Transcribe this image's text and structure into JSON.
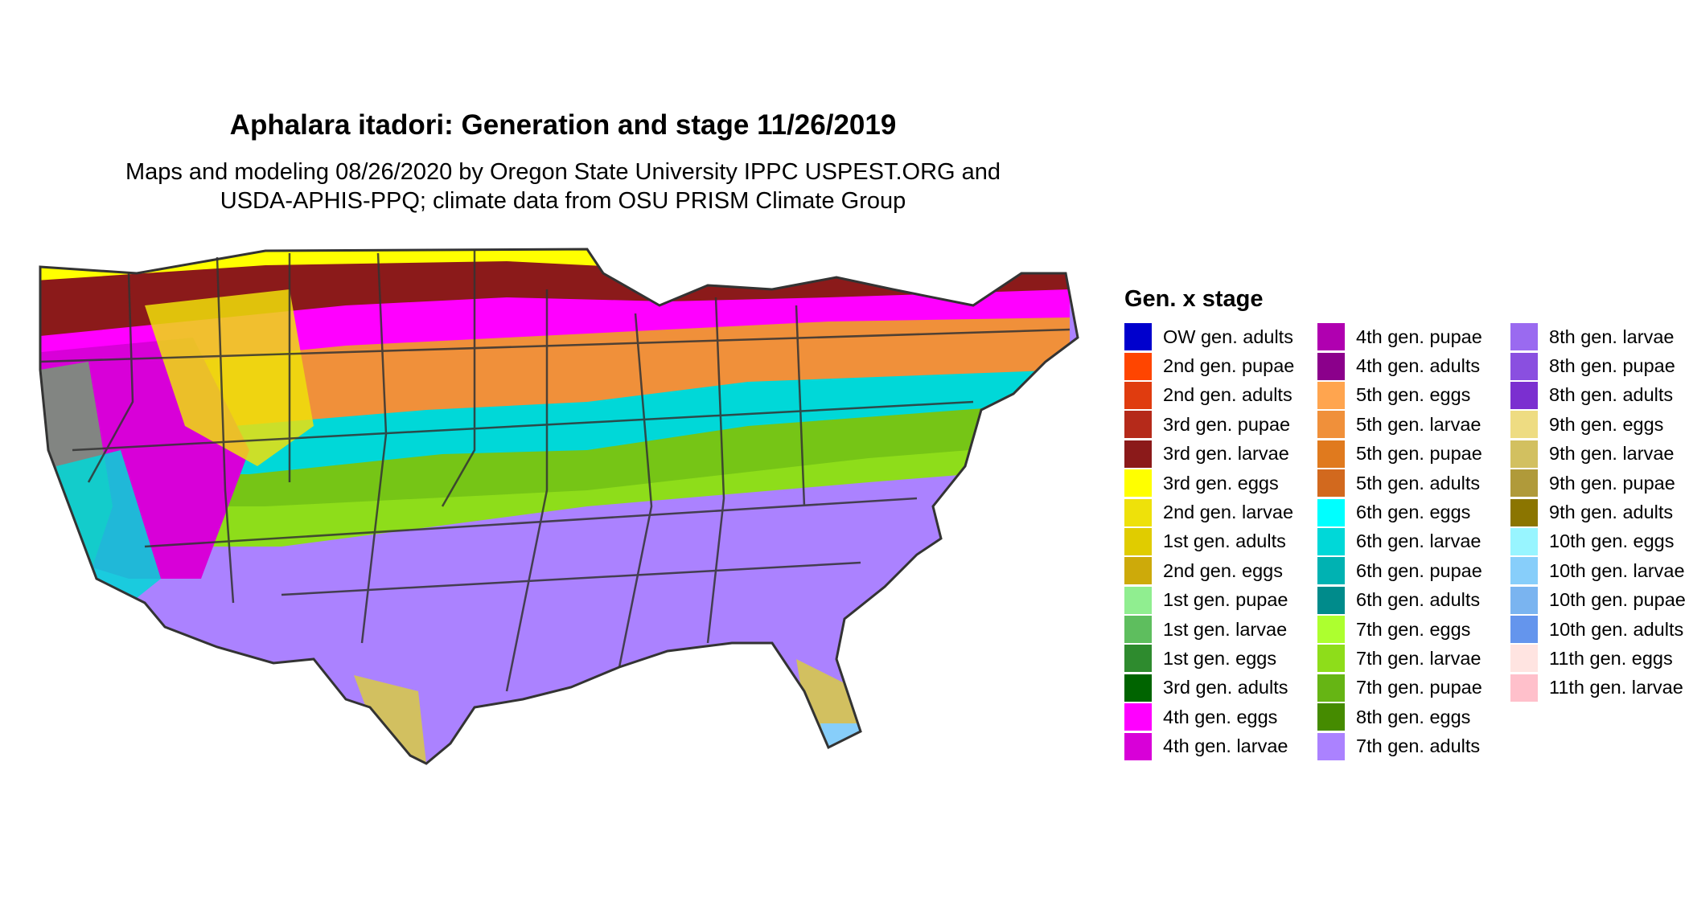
{
  "title": "Aphalara itadori: Generation and stage 11/26/2019",
  "subtitle_line1": "Maps and modeling 08/26/2020 by Oregon State University IPPC USPEST.ORG and",
  "subtitle_line2": "USDA-APHIS-PPQ; climate data from OSU PRISM Climate Group",
  "legend": {
    "title": "Gen. x stage",
    "columns": [
      [
        {
          "label": "OW gen. adults",
          "color": "#0000CD"
        },
        {
          "label": "2nd gen. pupae",
          "color": "#FF4500"
        },
        {
          "label": "2nd gen. adults",
          "color": "#E03C0F"
        },
        {
          "label": "3rd gen. pupae",
          "color": "#B52A1A"
        },
        {
          "label": "3rd gen. larvae",
          "color": "#8B1A1A"
        },
        {
          "label": "3rd gen. eggs",
          "color": "#FFFF00"
        },
        {
          "label": "2nd gen. larvae",
          "color": "#EEE10A"
        },
        {
          "label": "1st gen. adults",
          "color": "#E0CC00"
        },
        {
          "label": "2nd gen. eggs",
          "color": "#CDAA0A"
        },
        {
          "label": "1st gen. pupae",
          "color": "#90EE90"
        },
        {
          "label": "1st gen. larvae",
          "color": "#5EBE5E"
        },
        {
          "label": "1st gen. eggs",
          "color": "#2E8B2E"
        },
        {
          "label": "3rd gen. adults",
          "color": "#006400"
        },
        {
          "label": "4th gen. eggs",
          "color": "#FF00FF"
        },
        {
          "label": "4th gen. larvae",
          "color": "#D800D8"
        }
      ],
      [
        {
          "label": "4th gen. pupae",
          "color": "#B000B0"
        },
        {
          "label": "4th gen. adults",
          "color": "#8B008B"
        },
        {
          "label": "5th gen. eggs",
          "color": "#FFA54F"
        },
        {
          "label": "5th gen. larvae",
          "color": "#F0903A"
        },
        {
          "label": "5th gen. pupae",
          "color": "#E07A1E"
        },
        {
          "label": "5th gen. adults",
          "color": "#D2691E"
        },
        {
          "label": "6th gen. eggs",
          "color": "#00FFFF"
        },
        {
          "label": "6th gen. larvae",
          "color": "#00D8D8"
        },
        {
          "label": "6th gen. pupae",
          "color": "#00B2B2"
        },
        {
          "label": "6th gen. adults",
          "color": "#008B8B"
        },
        {
          "label": "7th gen. eggs",
          "color": "#ADFF2F"
        },
        {
          "label": "7th gen. larvae",
          "color": "#8EDD1A"
        },
        {
          "label": "7th gen. pupae",
          "color": "#66B514"
        },
        {
          "label": "8th gen. eggs",
          "color": "#458B00"
        },
        {
          "label": "7th gen. adults",
          "color": "#AB82FF"
        }
      ],
      [
        {
          "label": "8th gen. larvae",
          "color": "#9A6AF0"
        },
        {
          "label": "8th gen. pupae",
          "color": "#8A4FE0"
        },
        {
          "label": "8th gen. adults",
          "color": "#7B2FD0"
        },
        {
          "label": "9th gen. eggs",
          "color": "#EEDC82"
        },
        {
          "label": "9th gen. larvae",
          "color": "#D2C060"
        },
        {
          "label": "9th gen. pupae",
          "color": "#B09A3A"
        },
        {
          "label": "9th gen. adults",
          "color": "#8B7500"
        },
        {
          "label": "10th gen. eggs",
          "color": "#98F5FF"
        },
        {
          "label": "10th gen. larvae",
          "color": "#87CEFA"
        },
        {
          "label": "10th gen. pupae",
          "color": "#7AB4F0"
        },
        {
          "label": "10th gen. adults",
          "color": "#6495ED"
        },
        {
          "label": "11th gen. eggs",
          "color": "#FFE4E1"
        },
        {
          "label": "11th gen. larvae",
          "color": "#FFC0CB"
        }
      ]
    ]
  },
  "map_colors": {
    "outline": "#333333",
    "north_band": "#8B1A1A",
    "north_band_alt": "#E03C0F",
    "north_edge": "#FFFF00",
    "mid_north": "#FF00FF",
    "mid": "#F0903A",
    "mid_south": "#00D8D8",
    "south": "#8EDD1A",
    "south_green": "#458B00",
    "gulf": "#AB82FF",
    "tip": "#D2C060",
    "keys": "#87CEFA",
    "west_green": "#5EBE5E"
  }
}
